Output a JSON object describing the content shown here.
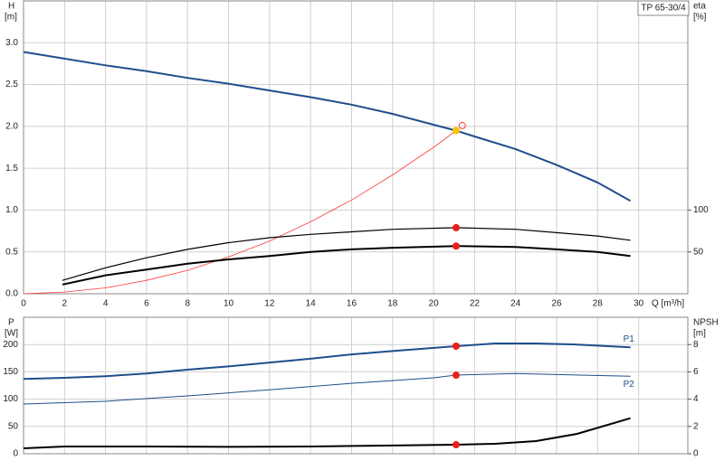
{
  "chart_data": [
    {
      "type": "line",
      "legend_label": "TP 65-30/4",
      "ylabel": "H",
      "yunit": "[m]",
      "y2label": "eta",
      "y2unit": "[%]",
      "xlabel": "Q [m³/h]",
      "xlim": [
        0,
        32.4
      ],
      "xticks": [
        0,
        2,
        4,
        6,
        8,
        10,
        12,
        14,
        16,
        18,
        20,
        22,
        24,
        26,
        28,
        30
      ],
      "ylim": [
        0,
        3.5
      ],
      "yticks": [
        {
          "value": 0,
          "label": "0.0"
        },
        {
          "value": 0.5,
          "label": "0.5"
        },
        {
          "value": 1,
          "label": "1.0"
        },
        {
          "value": 1.5,
          "label": "1.5"
        },
        {
          "value": 2,
          "label": "2.0"
        },
        {
          "value": 2.5,
          "label": "2.5"
        },
        {
          "value": 3,
          "label": "3.0"
        }
      ],
      "y2lim": [
        0,
        350
      ],
      "y2ticks": [
        50,
        100
      ],
      "grid": true,
      "series": [
        {
          "color": "#1f4e8c",
          "x": [
            0,
            2,
            4,
            6,
            8,
            10,
            12,
            14,
            16,
            18,
            20,
            21.1,
            22,
            24,
            26,
            28,
            29.6
          ],
          "values": [
            2.89,
            2.81,
            2.73,
            2.66,
            2.58,
            2.51,
            2.43,
            2.35,
            2.26,
            2.15,
            2.02,
            1.95,
            1.88,
            1.73,
            1.54,
            1.33,
            1.11
          ]
        },
        {
          "color": "#ff3b3b",
          "x": [
            0,
            2,
            4,
            6,
            8,
            10,
            12,
            14,
            16,
            18,
            20,
            21.1
          ],
          "values": [
            0,
            0.02,
            0.07,
            0.16,
            0.28,
            0.44,
            0.63,
            0.86,
            1.12,
            1.42,
            1.75,
            1.95
          ]
        },
        {
          "color": "#000000",
          "axis": "y2",
          "x": [
            1.9,
            4,
            6,
            8,
            10,
            12,
            14,
            16,
            18,
            21.1,
            24,
            26,
            28,
            29.6
          ],
          "values": [
            16,
            31,
            43,
            53,
            61,
            67,
            71,
            74,
            77,
            79,
            77,
            73,
            69,
            64
          ]
        },
        {
          "color": "#000000",
          "axis": "y2",
          "x": [
            1.9,
            4,
            6,
            8,
            10,
            12,
            14,
            16,
            18,
            21.1,
            24,
            26,
            28,
            29.6
          ],
          "values": [
            11,
            22,
            29,
            36,
            41,
            45,
            50,
            53,
            55,
            57,
            56,
            53,
            50,
            45
          ]
        }
      ],
      "markers": [
        {
          "x": 21.4,
          "y": 2.01,
          "color": "#ff3b3b",
          "hollow": true
        },
        {
          "x": 21.1,
          "y": 1.95,
          "color": "#f5c400"
        },
        {
          "x": 21.1,
          "y": 79,
          "color": "#e8201c",
          "axis": "y2"
        },
        {
          "x": 21.1,
          "y": 57,
          "color": "#e8201c",
          "axis": "y2"
        }
      ]
    },
    {
      "type": "line",
      "ylabel": "P",
      "yunit": "[W]",
      "y2label": "NPSH",
      "y2unit": "[m]",
      "xlim": [
        0,
        32.4
      ],
      "xticks": [
        0,
        2,
        4,
        6,
        8,
        10,
        12,
        14,
        16,
        18,
        20,
        22,
        24,
        26,
        28,
        30
      ],
      "ylim": [
        0,
        250
      ],
      "yticks": [
        0,
        50,
        100,
        150,
        200
      ],
      "y2lim": [
        0,
        10
      ],
      "y2ticks": [
        0,
        2,
        4,
        6,
        8
      ],
      "grid": true,
      "series": [
        {
          "name": "P1",
          "color": "#1f4e8c",
          "x": [
            0,
            2,
            4,
            6,
            8,
            10,
            12,
            14,
            16,
            18,
            21.1,
            23,
            25,
            27,
            29.6
          ],
          "values": [
            137,
            139,
            142,
            147,
            154,
            160,
            167,
            174,
            182,
            188,
            197,
            202,
            202,
            200,
            195
          ]
        },
        {
          "name": "P2",
          "color": "#1f4e8c",
          "x": [
            0,
            4,
            8,
            12,
            16,
            20,
            21.1,
            24,
            26,
            29.6
          ],
          "values": [
            91,
            96,
            106,
            117,
            129,
            139,
            144,
            147,
            145,
            142
          ]
        },
        {
          "color": "#000000",
          "axis": "y2",
          "x": [
            0,
            2,
            6,
            10,
            14,
            18,
            21.1,
            23,
            25,
            27,
            29.6
          ],
          "values": [
            0.4,
            0.53,
            0.53,
            0.5,
            0.53,
            0.6,
            0.66,
            0.73,
            0.93,
            1.46,
            2.6
          ]
        }
      ],
      "markers": [
        {
          "x": 21.1,
          "y": 197,
          "color": "#e8201c"
        },
        {
          "x": 21.1,
          "y": 144,
          "color": "#e8201c"
        },
        {
          "x": 21.1,
          "y": 0.66,
          "color": "#e8201c",
          "axis": "y2"
        }
      ]
    }
  ]
}
